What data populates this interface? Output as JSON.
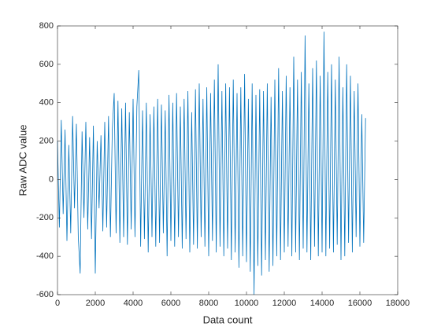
{
  "chart_data": {
    "type": "line",
    "x_label": "Data count",
    "y_label": "Raw ADC value",
    "xlim": [
      0,
      18000
    ],
    "xticks": [
      0,
      2000,
      4000,
      6000,
      8000,
      10000,
      12000,
      14000,
      16000,
      18000
    ],
    "ylim": [
      -600,
      800
    ],
    "yticks": [
      -600,
      -400,
      -200,
      0,
      200,
      400,
      600,
      800
    ],
    "grid": false,
    "x": [
      0,
      100,
      200,
      300,
      400,
      500,
      600,
      700,
      800,
      900,
      1000,
      1100,
      1200,
      1300,
      1400,
      1500,
      1600,
      1700,
      1800,
      1900,
      2000,
      2100,
      2200,
      2300,
      2400,
      2500,
      2600,
      2700,
      2800,
      2900,
      3000,
      3100,
      3200,
      3300,
      3400,
      3500,
      3600,
      3700,
      3800,
      3900,
      4000,
      4100,
      4200,
      4300,
      4400,
      4500,
      4600,
      4700,
      4800,
      4900,
      5000,
      5100,
      5200,
      5300,
      5400,
      5500,
      5600,
      5700,
      5800,
      5900,
      6000,
      6100,
      6200,
      6300,
      6400,
      6500,
      6600,
      6700,
      6800,
      6900,
      7000,
      7100,
      7200,
      7300,
      7400,
      7500,
      7600,
      7700,
      7800,
      7900,
      8000,
      8100,
      8200,
      8300,
      8400,
      8500,
      8600,
      8700,
      8800,
      8900,
      9000,
      9100,
      9200,
      9300,
      9400,
      9500,
      9600,
      9700,
      9800,
      9900,
      10000,
      10100,
      10200,
      10300,
      10400,
      10500,
      10600,
      10700,
      10800,
      10900,
      11000,
      11100,
      11200,
      11300,
      11400,
      11500,
      11600,
      11700,
      11800,
      11900,
      12000,
      12100,
      12200,
      12300,
      12400,
      12500,
      12600,
      12700,
      12800,
      12900,
      13000,
      13100,
      13200,
      13300,
      13400,
      13500,
      13600,
      13700,
      13800,
      13900,
      14000,
      14100,
      14200,
      14300,
      14400,
      14500,
      14600,
      14700,
      14800,
      14900,
      15000,
      15100,
      15200,
      15300,
      15400,
      15500,
      15600,
      15700,
      15800,
      15900,
      16000,
      16100,
      16200,
      16300
    ],
    "series": [
      {
        "color": "#0072bd",
        "values": [
          200,
          -250,
          310,
          -180,
          260,
          -320,
          180,
          -280,
          330,
          -150,
          290,
          -300,
          -490,
          250,
          -200,
          300,
          -260,
          220,
          -310,
          280,
          -490,
          200,
          -150,
          230,
          -270,
          300,
          -250,
          330,
          -300,
          260,
          450,
          -280,
          410,
          -330,
          370,
          -300,
          400,
          -340,
          350,
          -260,
          420,
          -300,
          380,
          570,
          -350,
          360,
          -310,
          400,
          -380,
          340,
          -300,
          380,
          -350,
          420,
          -330,
          390,
          -280,
          360,
          -400,
          440,
          -320,
          400,
          -350,
          450,
          -300,
          380,
          -360,
          420,
          -310,
          460,
          -380,
          350,
          -340,
          470,
          -360,
          500,
          -300,
          420,
          -350,
          480,
          -400,
          450,
          -320,
          520,
          -380,
          600,
          -350,
          460,
          -400,
          500,
          -360,
          480,
          -420,
          520,
          -380,
          450,
          -460,
          480,
          -400,
          550,
          -430,
          420,
          -480,
          500,
          -600,
          440,
          -450,
          470,
          -500,
          460,
          -420,
          500,
          -480,
          430,
          -450,
          520,
          -400,
          580,
          -420,
          460,
          -380,
          540,
          -350,
          480,
          -400,
          640,
          -380,
          520,
          -420,
          560,
          -360,
          750,
          -380,
          500,
          -420,
          580,
          -350,
          620,
          -400,
          540,
          -380,
          770,
          -400,
          560,
          -360,
          600,
          -380,
          520,
          -340,
          640,
          -420,
          480,
          -400,
          600,
          -330,
          540,
          -380,
          460,
          -300,
          500,
          -350,
          340,
          -330,
          320
        ]
      }
    ]
  }
}
